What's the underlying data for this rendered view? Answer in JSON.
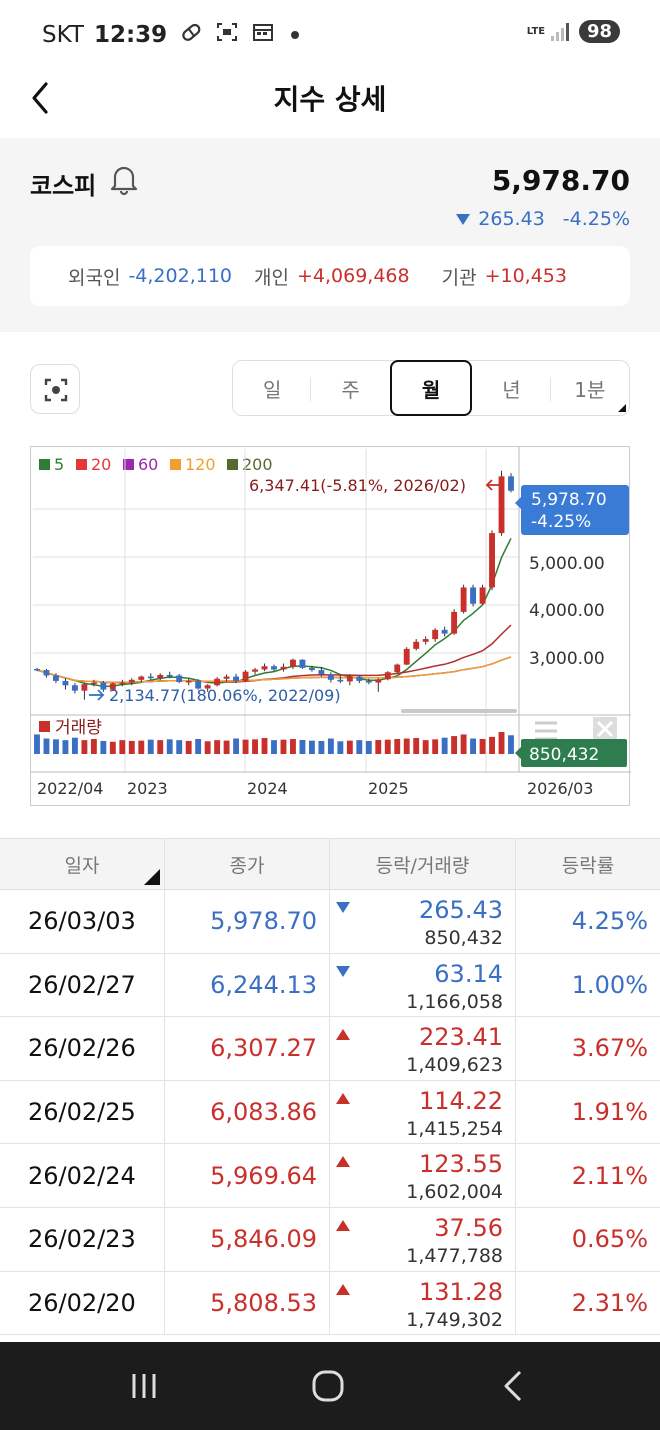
{
  "status": {
    "carrier": "SKT",
    "time": "12:39",
    "network": "LTE",
    "battery": "98"
  },
  "header": {
    "title": "지수 상세"
  },
  "summary": {
    "name": "코스피",
    "price": "5,978.70",
    "change": "265.43",
    "change_rate": "-4.25%",
    "investors": [
      {
        "label": "외국인",
        "value": "-4,202,110",
        "tone": "blue"
      },
      {
        "label": "개인",
        "value": "+4,069,468",
        "tone": "red"
      },
      {
        "label": "기관",
        "value": "+10,453",
        "tone": "red"
      }
    ]
  },
  "period_tabs": [
    "일",
    "주",
    "월",
    "년",
    "1분"
  ],
  "active_period": "월",
  "chart_data": {
    "type": "candlestick",
    "legend": [
      {
        "label": "5",
        "color": "#2e7d32"
      },
      {
        "label": "20",
        "color": "#e53935"
      },
      {
        "label": "60",
        "color": "#9c27b0"
      },
      {
        "label": "120",
        "color": "#f0a030"
      },
      {
        "label": "200",
        "color": "#556b2f"
      }
    ],
    "y_ticks": [
      "5,000.00",
      "4,000.00",
      "3,000.00"
    ],
    "ylim": [
      2000,
      6600
    ],
    "x_ticks": [
      "2022/04",
      "2023",
      "2024",
      "2025",
      "2026/03"
    ],
    "max_annotation": "6,347.41(-5.81%, 2026/02)",
    "min_annotation": "2,134.77(180.06%, 2022/09)",
    "current_price_label": "5,978.70",
    "current_rate_label": "-4.25%",
    "volume_label": "거래량",
    "volume_value": "850,432",
    "candles": [
      [
        2700,
        2720,
        2660,
        2680
      ],
      [
        2680,
        2700,
        2540,
        2580
      ],
      [
        2580,
        2620,
        2440,
        2480
      ],
      [
        2480,
        2530,
        2320,
        2400
      ],
      [
        2400,
        2440,
        2250,
        2300
      ],
      [
        2300,
        2450,
        2134.77,
        2420
      ],
      [
        2420,
        2500,
        2380,
        2450
      ],
      [
        2450,
        2480,
        2280,
        2320
      ],
      [
        2320,
        2450,
        2300,
        2430
      ],
      [
        2430,
        2500,
        2380,
        2450
      ],
      [
        2450,
        2530,
        2400,
        2500
      ],
      [
        2500,
        2580,
        2460,
        2560
      ],
      [
        2560,
        2620,
        2500,
        2530
      ],
      [
        2530,
        2620,
        2490,
        2590
      ],
      [
        2590,
        2650,
        2530,
        2580
      ],
      [
        2580,
        2610,
        2440,
        2460
      ],
      [
        2460,
        2520,
        2400,
        2480
      ],
      [
        2480,
        2510,
        2320,
        2340
      ],
      [
        2340,
        2420,
        2280,
        2400
      ],
      [
        2400,
        2550,
        2380,
        2520
      ],
      [
        2520,
        2600,
        2470,
        2560
      ],
      [
        2560,
        2610,
        2440,
        2480
      ],
      [
        2480,
        2680,
        2460,
        2650
      ],
      [
        2650,
        2720,
        2600,
        2690
      ],
      [
        2690,
        2800,
        2660,
        2750
      ],
      [
        2750,
        2780,
        2660,
        2690
      ],
      [
        2690,
        2800,
        2650,
        2740
      ],
      [
        2740,
        2890,
        2700,
        2870
      ],
      [
        2870,
        2880,
        2700,
        2720
      ],
      [
        2720,
        2760,
        2650,
        2680
      ],
      [
        2680,
        2740,
        2560,
        2600
      ],
      [
        2600,
        2640,
        2450,
        2500
      ],
      [
        2500,
        2580,
        2440,
        2470
      ],
      [
        2470,
        2600,
        2400,
        2560
      ],
      [
        2560,
        2580,
        2440,
        2480
      ],
      [
        2480,
        2520,
        2420,
        2450
      ],
      [
        2450,
        2530,
        2280,
        2510
      ],
      [
        2510,
        2660,
        2490,
        2640
      ],
      [
        2640,
        2800,
        2620,
        2780
      ],
      [
        2780,
        3100,
        2770,
        3070
      ],
      [
        3070,
        3250,
        3040,
        3200
      ],
      [
        3200,
        3300,
        3150,
        3250
      ],
      [
        3250,
        3450,
        3200,
        3420
      ],
      [
        3420,
        3480,
        3300,
        3350
      ],
      [
        3350,
        3800,
        3330,
        3750
      ],
      [
        3750,
        4250,
        3720,
        4200
      ],
      [
        4200,
        4250,
        3850,
        3900
      ],
      [
        3900,
        4250,
        3880,
        4200
      ],
      [
        4200,
        5250,
        4150,
        5200
      ],
      [
        5200,
        6347.41,
        5150,
        6244.13
      ],
      [
        6244.13,
        6300,
        5950,
        5978.7
      ]
    ],
    "volumes": [
      120,
      95,
      90,
      85,
      100,
      85,
      92,
      80,
      75,
      85,
      80,
      82,
      88,
      85,
      90,
      85,
      80,
      92,
      78,
      85,
      82,
      95,
      88,
      90,
      98,
      85,
      88,
      92,
      86,
      82,
      80,
      95,
      78,
      82,
      85,
      80,
      86,
      88,
      92,
      95,
      98,
      85,
      90,
      100,
      110,
      120,
      95,
      92,
      105,
      135,
      115
    ]
  },
  "table": {
    "headers": [
      "일자",
      "종가",
      "등락/거래량",
      "등락률"
    ],
    "rows": [
      {
        "date": "26/03/03",
        "close": "5,978.70",
        "change": "265.43",
        "volume": "850,432",
        "rate": "4.25%",
        "dir": "down"
      },
      {
        "date": "26/02/27",
        "close": "6,244.13",
        "change": "63.14",
        "volume": "1,166,058",
        "rate": "1.00%",
        "dir": "down"
      },
      {
        "date": "26/02/26",
        "close": "6,307.27",
        "change": "223.41",
        "volume": "1,409,623",
        "rate": "3.67%",
        "dir": "up"
      },
      {
        "date": "26/02/25",
        "close": "6,083.86",
        "change": "114.22",
        "volume": "1,415,254",
        "rate": "1.91%",
        "dir": "up"
      },
      {
        "date": "26/02/24",
        "close": "5,969.64",
        "change": "123.55",
        "volume": "1,602,004",
        "rate": "2.11%",
        "dir": "up"
      },
      {
        "date": "26/02/23",
        "close": "5,846.09",
        "change": "37.56",
        "volume": "1,477,788",
        "rate": "0.65%",
        "dir": "up"
      },
      {
        "date": "26/02/20",
        "close": "5,808.53",
        "change": "131.28",
        "volume": "1,749,302",
        "rate": "2.31%",
        "dir": "up"
      }
    ]
  },
  "colors": {
    "up": "#c9302c",
    "down": "#3a6fc4",
    "current_label_bg": "#3a7bd5",
    "volume_label_bg": "#2e7d4f"
  }
}
